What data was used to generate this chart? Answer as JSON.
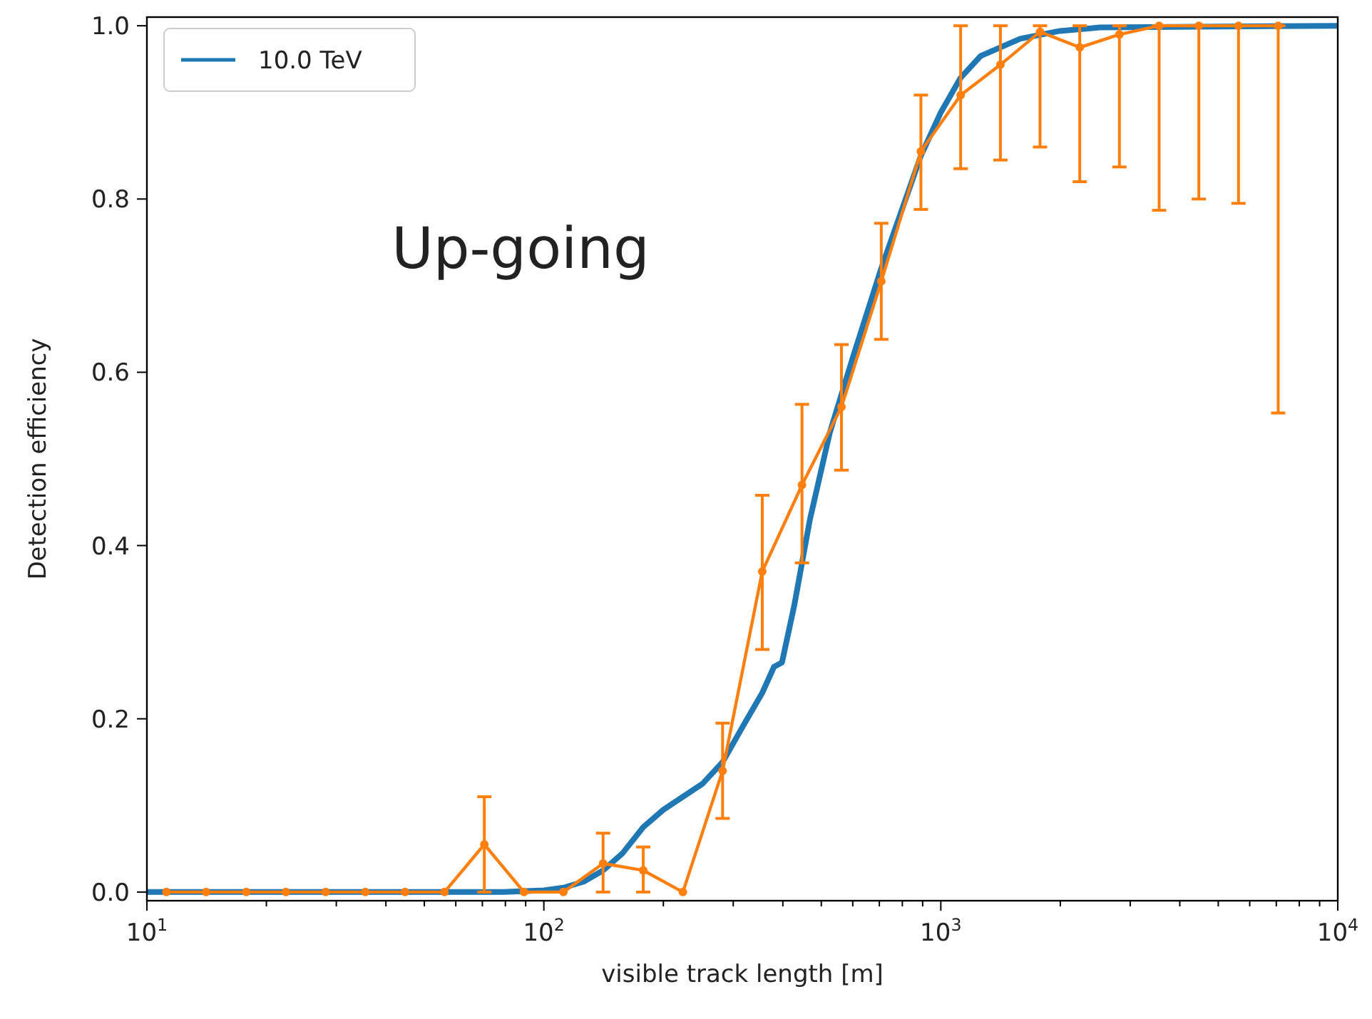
{
  "chart_data": {
    "type": "line",
    "xlabel": "visible track length [m]",
    "ylabel": "Detection efficiency",
    "annotations": [
      "Up-going"
    ],
    "log": "x",
    "legend": "top left",
    "grid": false,
    "xlim": [
      10,
      10000
    ],
    "ylim": [
      -0.01,
      1.01
    ],
    "xticks": [
      {
        "value": 10,
        "label": "10$^{1}$"
      },
      {
        "value": 20,
        "label": null
      },
      {
        "value": 30,
        "label": null
      },
      {
        "value": 40,
        "label": null
      },
      {
        "value": 50,
        "label": null
      },
      {
        "value": 60,
        "label": null
      },
      {
        "value": 70,
        "label": null
      },
      {
        "value": 80,
        "label": null
      },
      {
        "value": 90,
        "label": null
      },
      {
        "value": 100,
        "label": "10$^{2}$"
      },
      {
        "value": 200,
        "label": null
      },
      {
        "value": 300,
        "label": null
      },
      {
        "value": 400,
        "label": null
      },
      {
        "value": 500,
        "label": null
      },
      {
        "value": 600,
        "label": null
      },
      {
        "value": 700,
        "label": null
      },
      {
        "value": 800,
        "label": null
      },
      {
        "value": 900,
        "label": null
      },
      {
        "value": 1000,
        "label": "10$^{3}$"
      },
      {
        "value": 2000,
        "label": null
      },
      {
        "value": 3000,
        "label": null
      },
      {
        "value": 4000,
        "label": null
      },
      {
        "value": 5000,
        "label": null
      },
      {
        "value": 6000,
        "label": null
      },
      {
        "value": 7000,
        "label": null
      },
      {
        "value": 8000,
        "label": null
      },
      {
        "value": 9000,
        "label": null
      },
      {
        "value": 10000,
        "label": "10$^{4}$"
      }
    ],
    "yticks": [
      {
        "value": 0,
        "label": "0.0"
      },
      {
        "value": 0.2,
        "label": "0.2"
      },
      {
        "value": 0.4,
        "label": "0.4"
      },
      {
        "value": 0.6,
        "label": "0.6"
      },
      {
        "value": 0.8,
        "label": "0.8"
      },
      {
        "value": 1,
        "label": "1.0"
      }
    ],
    "series": [
      {
        "name": "10.0 TeV",
        "color": "#1f77b4",
        "marker": "none",
        "x": [
          10,
          79,
          100,
          112,
          126,
          141,
          158,
          178,
          200,
          224,
          251,
          282,
          316,
          355,
          380,
          398,
          427,
          468,
          525,
          603,
          708,
          891,
          1000,
          1122,
          1259,
          1585,
          1995,
          2512,
          10000
        ],
        "values": [
          0,
          0,
          0.002,
          0.005,
          0.012,
          0.025,
          0.045,
          0.075,
          0.095,
          0.11,
          0.125,
          0.15,
          0.19,
          0.23,
          0.26,
          0.265,
          0.33,
          0.43,
          0.53,
          0.62,
          0.72,
          0.85,
          0.9,
          0.94,
          0.965,
          0.985,
          0.994,
          0.998,
          1
        ]
      },
      {
        "color": "#ff7f0e",
        "marker": "circle",
        "x": [
          11.2,
          14.1,
          17.8,
          22.4,
          28.2,
          35.5,
          44.7,
          56.2,
          70.8,
          89.1,
          112,
          141,
          178,
          224,
          282,
          355,
          447,
          562,
          708,
          891,
          1122,
          1413,
          1778,
          2239,
          2818,
          3548,
          4467,
          5623,
          7079
        ],
        "values": [
          0,
          0,
          0,
          0,
          0,
          0,
          0,
          0,
          0.055,
          0,
          0,
          0.033,
          0.025,
          0,
          0.14,
          0.37,
          0.47,
          0.56,
          0.705,
          0.855,
          0.92,
          0.955,
          0.993,
          0.975,
          0.99,
          1,
          1,
          1,
          1
        ],
        "errors": [
          null,
          null,
          null,
          null,
          null,
          null,
          null,
          null,
          [
            0,
            0.11
          ],
          null,
          null,
          [
            0,
            0.068
          ],
          [
            0,
            0.052
          ],
          null,
          [
            0.085,
            0.195
          ],
          [
            0.28,
            0.458
          ],
          [
            0.38,
            0.563
          ],
          [
            0.487,
            0.632
          ],
          [
            0.638,
            0.772
          ],
          [
            0.788,
            0.92
          ],
          [
            0.835,
            1
          ],
          [
            0.845,
            1
          ],
          [
            0.86,
            1
          ],
          [
            0.82,
            1
          ],
          [
            0.837,
            1
          ],
          [
            0.787,
            1
          ],
          [
            0.8,
            1
          ],
          [
            0.795,
            1
          ],
          [
            0.553,
            1
          ]
        ]
      }
    ]
  }
}
